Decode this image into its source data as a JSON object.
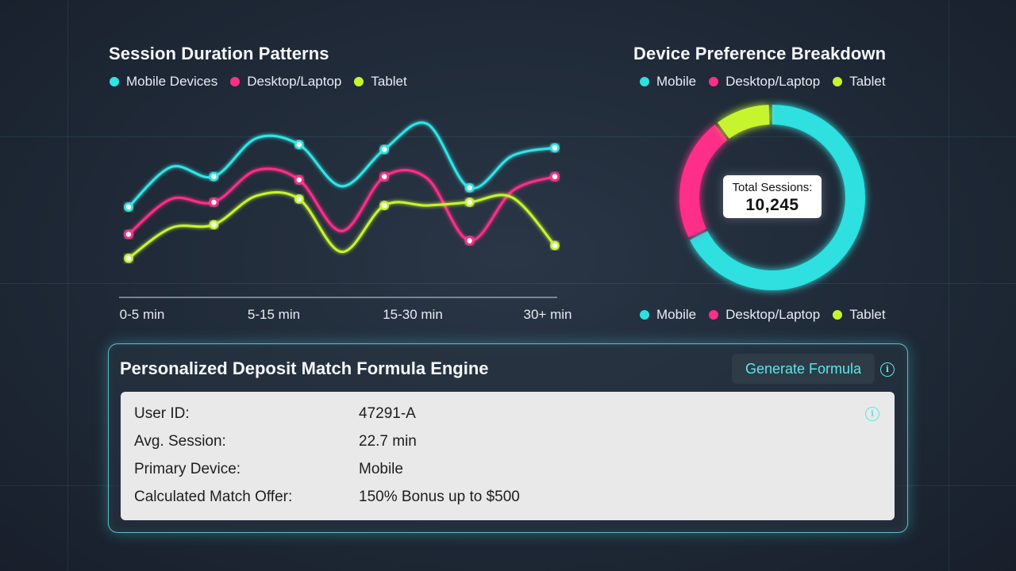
{
  "line_section": {
    "title": "Session Duration Patterns",
    "legend": [
      {
        "label": "Mobile Devices",
        "color": "#2ee6e6"
      },
      {
        "label": "Desktop/Laptop",
        "color": "#ff2e88"
      },
      {
        "label": "Tablet",
        "color": "#c6f52e"
      }
    ]
  },
  "donut_section": {
    "title": "Device Preference Breakdown",
    "legend_top": [
      {
        "label": "Mobile",
        "color": "#2ee0e0"
      },
      {
        "label": "Desktop/Laptop",
        "color": "#ff2e88"
      },
      {
        "label": "Tablet",
        "color": "#c6f52e"
      }
    ],
    "legend_bottom": [
      {
        "label": "Mobile",
        "color": "#2ee0e0"
      },
      {
        "label": "Desktop/Laptop",
        "color": "#ff2e88"
      },
      {
        "label": "Tablet",
        "color": "#c6f52e"
      }
    ],
    "center_label": "Total Sessions:",
    "center_value": "10,245"
  },
  "chart_data": [
    {
      "type": "line",
      "title": "Session Duration Patterns",
      "x_tick_labels": [
        "0-5 min",
        "5-15 min",
        "15-30 min",
        "30+ min"
      ],
      "x": [
        0,
        1,
        2,
        3,
        4,
        5,
        6,
        7,
        8,
        9,
        10
      ],
      "ylim": [
        0,
        100
      ],
      "grid": false,
      "legend_position": "top-left",
      "series": [
        {
          "name": "Mobile Devices",
          "color": "#2ee6e6",
          "values": [
            45,
            70,
            64,
            88,
            84,
            58,
            81,
            97,
            57,
            77,
            82
          ]
        },
        {
          "name": "Desktop/Laptop",
          "color": "#ff2e88",
          "values": [
            28,
            50,
            48,
            68,
            62,
            30,
            64,
            63,
            24,
            55,
            64
          ]
        },
        {
          "name": "Tablet",
          "color": "#c6f52e",
          "values": [
            13,
            32,
            34,
            52,
            50,
            17,
            46,
            46,
            48,
            51,
            21
          ]
        }
      ]
    },
    {
      "type": "pie",
      "title": "Device Preference Breakdown",
      "labels": [
        "Mobile",
        "Desktop/Laptop",
        "Tablet"
      ],
      "values": [
        68,
        22,
        10
      ],
      "colors": [
        "#2ee0e0",
        "#ff2e88",
        "#c6f52e"
      ],
      "legend_position": "top and bottom"
    }
  ],
  "panel": {
    "title": "Personalized Deposit Match Formula Engine",
    "generate_label": "Generate Formula",
    "info_glyph": "i",
    "rows": [
      {
        "key": "User ID:",
        "value": "47291-A"
      },
      {
        "key": "Avg. Session:",
        "value": "22.7 min"
      },
      {
        "key": "Primary Device:",
        "value": "Mobile"
      },
      {
        "key": "Calculated Match Offer:",
        "value": "150% Bonus up to $500"
      }
    ]
  },
  "icons": {
    "info": "info-icon"
  }
}
